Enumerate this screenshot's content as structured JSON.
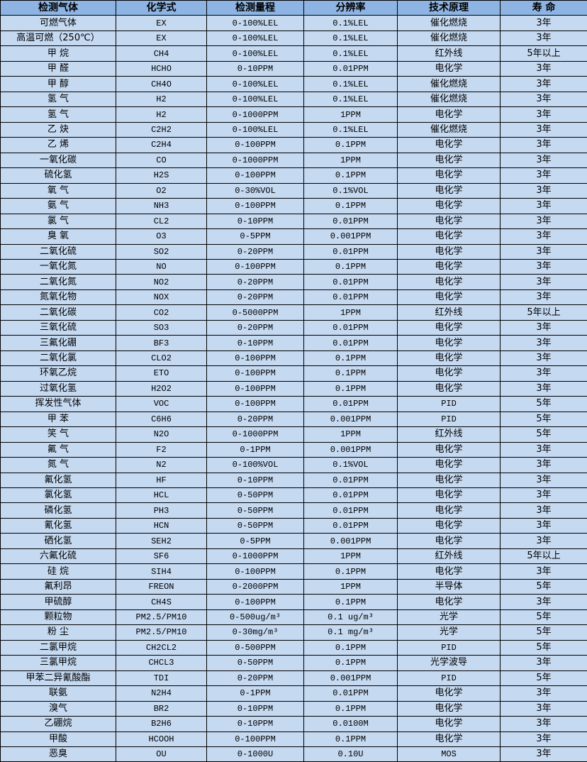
{
  "colors": {
    "header_bg": "#8db4e2",
    "row_bg": "#c5d9f1",
    "border": "#000000"
  },
  "headers": [
    "检测气体",
    "化学式",
    "检测量程",
    "分辨率",
    "技术原理",
    "寿 命"
  ],
  "rows": [
    [
      "可燃气体",
      "EX",
      "0-100%LEL",
      "0.1%LEL",
      "催化燃烧",
      "3年"
    ],
    [
      "高温可燃（250℃）",
      "EX",
      "0-100%LEL",
      "0.1%LEL",
      "催化燃烧",
      "3年"
    ],
    [
      "甲 烷",
      "CH4",
      "0-100%LEL",
      "0.1%LEL",
      "红外线",
      "5年以上"
    ],
    [
      "甲 醛",
      "HCHO",
      "0-10PPM",
      "0.01PPM",
      "电化学",
      "3年"
    ],
    [
      "甲 醇",
      "CH4O",
      "0-100%LEL",
      "0.1%LEL",
      "催化燃烧",
      "3年"
    ],
    [
      "氢 气",
      "H2",
      "0-100%LEL",
      "0.1%LEL",
      "催化燃烧",
      "3年"
    ],
    [
      "氢 气",
      "H2",
      "0-1000PPM",
      "1PPM",
      "电化学",
      "3年"
    ],
    [
      "乙 炔",
      "C2H2",
      "0-100%LEL",
      "0.1%LEL",
      "催化燃烧",
      "3年"
    ],
    [
      "乙 烯",
      "C2H4",
      "0-100PPM",
      "0.1PPM",
      "电化学",
      "3年"
    ],
    [
      "一氧化碳",
      "CO",
      "0-1000PPM",
      "1PPM",
      "电化学",
      "3年"
    ],
    [
      "硫化氢",
      "H2S",
      "0-100PPM",
      "0.1PPM",
      "电化学",
      "3年"
    ],
    [
      "氧 气",
      "O2",
      "0-30%VOL",
      "0.1%VOL",
      "电化学",
      "3年"
    ],
    [
      "氨 气",
      "NH3",
      "0-100PPM",
      "0.1PPM",
      "电化学",
      "3年"
    ],
    [
      "氯 气",
      "CL2",
      "0-10PPM",
      "0.01PPM",
      "电化学",
      "3年"
    ],
    [
      "臭 氧",
      "O3",
      "0-5PPM",
      "0.001PPM",
      "电化学",
      "3年"
    ],
    [
      "二氧化硫",
      "SO2",
      "0-20PPM",
      "0.01PPM",
      "电化学",
      "3年"
    ],
    [
      "一氧化氮",
      "NO",
      "0-100PPM",
      "0.1PPM",
      "电化学",
      "3年"
    ],
    [
      "二氧化氮",
      "NO2",
      "0-20PPM",
      "0.01PPM",
      "电化学",
      "3年"
    ],
    [
      "氮氧化物",
      "NOX",
      "0-20PPM",
      "0.01PPM",
      "电化学",
      "3年"
    ],
    [
      "二氧化碳",
      "CO2",
      "0-5000PPM",
      "1PPM",
      "红外线",
      "5年以上"
    ],
    [
      "三氧化硫",
      "SO3",
      "0-20PPM",
      "0.01PPM",
      "电化学",
      "3年"
    ],
    [
      "三氟化硼",
      "BF3",
      "0-10PPM",
      "0.01PPM",
      "电化学",
      "3年"
    ],
    [
      "二氧化氯",
      "CLO2",
      "0-100PPM",
      "0.1PPM",
      "电化学",
      "3年"
    ],
    [
      "环氧乙烷",
      "ETO",
      "0-100PPM",
      "0.1PPM",
      "电化学",
      "3年"
    ],
    [
      "过氧化氢",
      "H2O2",
      "0-100PPM",
      "0.1PPM",
      "电化学",
      "3年"
    ],
    [
      "挥发性气体",
      "VOC",
      "0-100PPM",
      "0.01PPM",
      "PID",
      "5年"
    ],
    [
      "甲 苯",
      "C6H6",
      "0-20PPM",
      "0.001PPM",
      "PID",
      "5年"
    ],
    [
      "笑 气",
      "N2O",
      "0-1000PPM",
      "1PPM",
      "红外线",
      "5年"
    ],
    [
      "氟 气",
      "F2",
      "0-1PPM",
      "0.001PPM",
      "电化学",
      "3年"
    ],
    [
      "氮 气",
      "N2",
      "0-100%VOL",
      "0.1%VOL",
      "电化学",
      "3年"
    ],
    [
      "氟化氢",
      "HF",
      "0-10PPM",
      "0.01PPM",
      "电化学",
      "3年"
    ],
    [
      "氯化氢",
      "HCL",
      "0-50PPM",
      "0.01PPM",
      "电化学",
      "3年"
    ],
    [
      "磷化氢",
      "PH3",
      "0-50PPM",
      "0.01PPM",
      "电化学",
      "3年"
    ],
    [
      "氰化氢",
      "HCN",
      "0-50PPM",
      "0.01PPM",
      "电化学",
      "3年"
    ],
    [
      "硒化氢",
      "SEH2",
      "0-5PPM",
      "0.001PPM",
      "电化学",
      "3年"
    ],
    [
      "六氟化硫",
      "SF6",
      "0-1000PPM",
      "1PPM",
      "红外线",
      "5年以上"
    ],
    [
      "硅 烷",
      "SIH4",
      "0-100PPM",
      "0.1PPM",
      "电化学",
      "3年"
    ],
    [
      "氟利昂",
      "FREON",
      "0-2000PPM",
      "1PPM",
      "半导体",
      "5年"
    ],
    [
      "甲硫醇",
      "CH4S",
      "0-100PPM",
      "0.1PPM",
      "电化学",
      "3年"
    ],
    [
      "颗粒物",
      "PM2.5/PM10",
      "0-500ug/m³",
      "0.1 ug/m³",
      "光学",
      "5年"
    ],
    [
      "粉 尘",
      "PM2.5/PM10",
      "0-30mg/m³",
      "0.1 mg/m³",
      "光学",
      "5年"
    ],
    [
      "二氯甲烷",
      "CH2CL2",
      "0-500PPM",
      "0.1PPM",
      "PID",
      "5年"
    ],
    [
      "三氯甲烷",
      "CHCL3",
      "0-50PPM",
      "0.1PPM",
      "光学波导",
      "3年"
    ],
    [
      "甲苯二异氰酸酯",
      "TDI",
      "0-20PPM",
      "0.001PPM",
      "PID",
      "5年"
    ],
    [
      "联氨",
      "N2H4",
      "0-1PPM",
      "0.01PPM",
      "电化学",
      "3年"
    ],
    [
      "溴气",
      "BR2",
      "0-10PPM",
      "0.1PPM",
      "电化学",
      "3年"
    ],
    [
      "乙硼烷",
      "B2H6",
      "0-10PPM",
      "0.0100M",
      "电化学",
      "3年"
    ],
    [
      "甲酸",
      "HCOOH",
      "0-100PPM",
      "0.1PPM",
      "电化学",
      "3年"
    ],
    [
      "恶臭",
      "OU",
      "0-1000U",
      "0.10U",
      "MOS",
      "3年"
    ]
  ]
}
